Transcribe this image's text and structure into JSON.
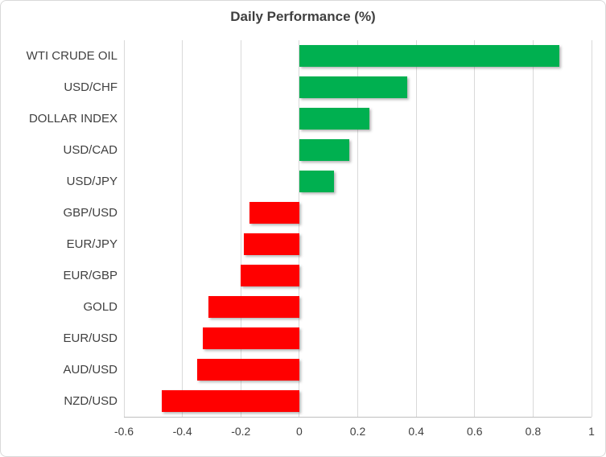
{
  "chart_data": {
    "type": "bar",
    "orientation": "horizontal",
    "title": "Daily Performance (%)",
    "categories": [
      "WTI CRUDE OIL",
      "USD/CHF",
      "DOLLAR INDEX",
      "USD/CAD",
      "USD/JPY",
      "GBP/USD",
      "EUR/JPY",
      "EUR/GBP",
      "GOLD",
      "EUR/USD",
      "AUD/USD",
      "NZD/USD"
    ],
    "values": [
      0.89,
      0.37,
      0.24,
      0.17,
      0.12,
      -0.17,
      -0.19,
      -0.2,
      -0.31,
      -0.33,
      -0.35,
      -0.47
    ],
    "xlabel": "",
    "ylabel": "",
    "xlim": [
      -0.6,
      1.0
    ],
    "x_ticks": [
      {
        "value": -0.6,
        "label": "-0.6"
      },
      {
        "value": -0.4,
        "label": "-0.4"
      },
      {
        "value": -0.2,
        "label": "-0.2"
      },
      {
        "value": 0,
        "label": "0"
      },
      {
        "value": 0.2,
        "label": "0.2"
      },
      {
        "value": 0.4,
        "label": "0.4"
      },
      {
        "value": 0.6,
        "label": "0.6"
      },
      {
        "value": 0.8,
        "label": "0.8"
      },
      {
        "value": 1,
        "label": "1"
      }
    ],
    "grid": true,
    "legend": false,
    "colors": {
      "positive": "#00B050",
      "negative": "#FF0000",
      "gridline": "#D9D9D9",
      "axis_line": "#BFBFBF",
      "text": "#404040"
    }
  }
}
